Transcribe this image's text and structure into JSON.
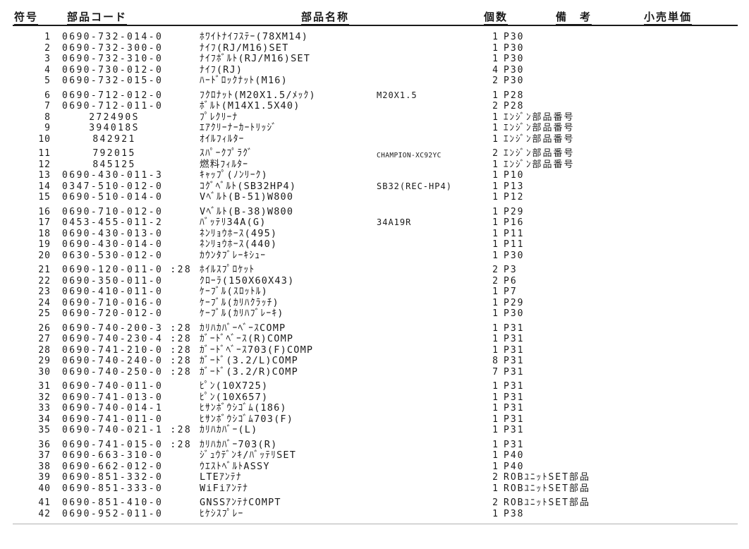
{
  "page": {
    "background": "#ffffff",
    "text_color": "#1a1a1a",
    "rule_color": "#1a1a1a",
    "bottom_rule_color": "#b0b0b0"
  },
  "table": {
    "headers": {
      "num": "符号",
      "code": "部品コード",
      "name": "部品名称",
      "qty": "個数",
      "remarks": "備　考",
      "price": "小売単価"
    },
    "groups": [
      [
        {
          "num": "1",
          "code": "0690-732-014-0",
          "name": "ﾎﾜｲﾄﾅｲﾌｽﾃｰ(78XM14)",
          "spec": "",
          "qty": "1",
          "remarks": "P30"
        },
        {
          "num": "2",
          "code": "0690-732-300-0",
          "name": "ﾅｲﾌ(RJ/M16)SET",
          "spec": "",
          "qty": "1",
          "remarks": "P30"
        },
        {
          "num": "3",
          "code": "0690-732-310-0",
          "name": "ﾅｲﾌﾎﾞﾙﾄ(RJ/M16)SET",
          "spec": "",
          "qty": "1",
          "remarks": "P30"
        },
        {
          "num": "4",
          "code": "0690-730-012-0",
          "name": "ﾅｲﾌ(RJ)",
          "spec": "",
          "qty": "4",
          "remarks": "P30"
        },
        {
          "num": "5",
          "code": "0690-732-015-0",
          "name": "ﾊｰﾄﾞﾛｯｸﾅｯﾄ(M16)",
          "spec": "",
          "qty": "2",
          "remarks": "P30"
        }
      ],
      [
        {
          "num": "6",
          "code": "0690-712-012-0",
          "name": "ﾌｸﾛﾅｯﾄ(M20X1.5/ﾒｯｸ)",
          "spec": "M20X1.5",
          "qty": "1",
          "remarks": "P28"
        },
        {
          "num": "7",
          "code": "0690-712-011-0",
          "name": "ﾎﾞﾙﾄ(M14X1.5X40)",
          "spec": "",
          "qty": "2",
          "remarks": "P28"
        },
        {
          "num": "8",
          "code": "272490S",
          "name": "ﾌﾟﾚｸﾘｰﾅ",
          "spec": "",
          "qty": "1",
          "remarks": "ｴﾝｼﾞﾝ部品番号"
        },
        {
          "num": "9",
          "code": "394018S",
          "name": "ｴｱｸﾘｰﾅｰｶｰﾄﾘｯｼﾞ",
          "spec": "",
          "qty": "1",
          "remarks": "ｴﾝｼﾞﾝ部品番号"
        },
        {
          "num": "10",
          "code": "842921",
          "name": "ｵｲﾙﾌｨﾙﾀｰ",
          "spec": "",
          "qty": "1",
          "remarks": "ｴﾝｼﾞﾝ部品番号"
        }
      ],
      [
        {
          "num": "11",
          "code": "792015",
          "name": "ｽﾊﾟｰｸﾌﾟﾗｸﾞ",
          "spec": "CHAMPION-XC92YC",
          "spec_small": true,
          "qty": "2",
          "remarks": "ｴﾝｼﾞﾝ部品番号"
        },
        {
          "num": "12",
          "code": "845125",
          "name": "燃料ﾌｨﾙﾀｰ",
          "spec": "",
          "qty": "1",
          "remarks": "ｴﾝｼﾞﾝ部品番号"
        },
        {
          "num": "13",
          "code": "0690-430-011-3",
          "name": "ｷｬｯﾌﾟ(ﾉﾝﾘｰｸ)",
          "spec": "",
          "qty": "1",
          "remarks": "P10"
        },
        {
          "num": "14",
          "code": "0347-510-012-0",
          "name": "ｺｸﾞﾍﾞﾙﾄ(SB32HP4)",
          "spec": "SB32(REC-HP4)",
          "qty": "1",
          "remarks": "P13"
        },
        {
          "num": "15",
          "code": "0690-510-014-0",
          "name": "Vﾍﾞﾙﾄ(B-51)W800",
          "spec": "",
          "qty": "1",
          "remarks": "P12"
        }
      ],
      [
        {
          "num": "16",
          "code": "0690-710-012-0",
          "name": "Vﾍﾞﾙﾄ(B-38)W800",
          "spec": "",
          "qty": "1",
          "remarks": "P29"
        },
        {
          "num": "17",
          "code": "0453-455-011-2",
          "name": "ﾊﾞｯﾃﾘ34A(G)",
          "spec": "34A19R",
          "qty": "1",
          "remarks": "P16"
        },
        {
          "num": "18",
          "code": "0690-430-013-0",
          "name": "ﾈﾝﾘｮｳﾎｰｽ(495)",
          "spec": "",
          "qty": "1",
          "remarks": "P11"
        },
        {
          "num": "19",
          "code": "0690-430-014-0",
          "name": "ﾈﾝﾘｮｳﾎｰｽ(440)",
          "spec": "",
          "qty": "1",
          "remarks": "P11"
        },
        {
          "num": "20",
          "code": "0630-530-012-0",
          "name": "ｶｳﾝﾀﾌﾞﾚｰｷｼｭｰ",
          "spec": "",
          "qty": "1",
          "remarks": "P30"
        }
      ],
      [
        {
          "num": "21",
          "code": "0690-120-011-0 :28",
          "name": "ﾎｲﾙｽﾌﾟﾛｹｯﾄ",
          "spec": "",
          "qty": "2",
          "remarks": "P3"
        },
        {
          "num": "22",
          "code": "0690-350-011-0",
          "name": "ｸﾛｰﾗ(150X60X43)",
          "spec": "",
          "qty": "2",
          "remarks": "P6"
        },
        {
          "num": "23",
          "code": "0690-410-011-0",
          "name": "ｹｰﾌﾞﾙ(ｽﾛｯﾄﾙ)",
          "spec": "",
          "qty": "1",
          "remarks": "P7"
        },
        {
          "num": "24",
          "code": "0690-710-016-0",
          "name": "ｹｰﾌﾞﾙ(ｶﾘﾊｸﾗｯﾁ)",
          "spec": "",
          "qty": "1",
          "remarks": "P29"
        },
        {
          "num": "25",
          "code": "0690-720-012-0",
          "name": "ｹｰﾌﾞﾙ(ｶﾘﾊﾌﾞﾚｰｷ)",
          "spec": "",
          "qty": "1",
          "remarks": "P30"
        }
      ],
      [
        {
          "num": "26",
          "code": "0690-740-200-3 :28",
          "name": "ｶﾘﾊｶﾊﾞｰﾍﾞｰｽCOMP",
          "spec": "",
          "qty": "1",
          "remarks": "P31"
        },
        {
          "num": "27",
          "code": "0690-740-230-4 :28",
          "name": "ｶﾞｰﾄﾞﾍﾞｰｽ(R)COMP",
          "spec": "",
          "qty": "1",
          "remarks": "P31"
        },
        {
          "num": "28",
          "code": "0690-741-210-0 :28",
          "name": "ｶﾞｰﾄﾞﾍﾞｰｽ703(F)COMP",
          "spec": "",
          "qty": "1",
          "remarks": "P31"
        },
        {
          "num": "29",
          "code": "0690-740-240-0 :28",
          "name": "ｶﾞｰﾄﾞ(3.2/L)COMP",
          "spec": "",
          "qty": "8",
          "remarks": "P31"
        },
        {
          "num": "30",
          "code": "0690-740-250-0 :28",
          "name": "ｶﾞｰﾄﾞ(3.2/R)COMP",
          "spec": "",
          "qty": "7",
          "remarks": "P31"
        }
      ],
      [
        {
          "num": "31",
          "code": "0690-740-011-0",
          "name": "ﾋﾟﾝ(10X725)",
          "spec": "",
          "qty": "1",
          "remarks": "P31"
        },
        {
          "num": "32",
          "code": "0690-741-013-0",
          "name": "ﾋﾟﾝ(10X657)",
          "spec": "",
          "qty": "1",
          "remarks": "P31"
        },
        {
          "num": "33",
          "code": "0690-740-014-1",
          "name": "ﾋｻﾝﾎﾞｳｼｺﾞﾑ(186)",
          "spec": "",
          "qty": "1",
          "remarks": "P31"
        },
        {
          "num": "34",
          "code": "0690-741-011-0",
          "name": "ﾋｻﾝﾎﾞｳｼｺﾞﾑ703(F)",
          "spec": "",
          "qty": "1",
          "remarks": "P31"
        },
        {
          "num": "35",
          "code": "0690-740-021-1 :28",
          "name": "ｶﾘﾊｶﾊﾞｰ(L)",
          "spec": "",
          "qty": "1",
          "remarks": "P31"
        }
      ],
      [
        {
          "num": "36",
          "code": "0690-741-015-0 :28",
          "name": "ｶﾘﾊｶﾊﾞｰ703(R)",
          "spec": "",
          "qty": "1",
          "remarks": "P31"
        },
        {
          "num": "37",
          "code": "0690-663-310-0",
          "name": "ｼﾞｭｳﾃﾞﾝｷ/ﾊﾞｯﾃﾘSET",
          "spec": "",
          "qty": "1",
          "remarks": "P40"
        },
        {
          "num": "38",
          "code": "0690-662-012-0",
          "name": "ｳｴｽﾄﾍﾞﾙﾄASSY",
          "spec": "",
          "qty": "1",
          "remarks": "P40"
        },
        {
          "num": "39",
          "code": "0690-851-332-0",
          "name": "LTEｱﾝﾃﾅ",
          "spec": "",
          "qty": "2",
          "remarks": "ROBﾕﾆｯﾄSET部品"
        },
        {
          "num": "40",
          "code": "0690-851-333-0",
          "name": "WiFiｱﾝﾃﾅ",
          "spec": "",
          "qty": "1",
          "remarks": "ROBﾕﾆｯﾄSET部品"
        }
      ],
      [
        {
          "num": "41",
          "code": "0690-851-410-0",
          "name": "GNSSｱﾝﾃﾅCOMPT",
          "spec": "",
          "qty": "2",
          "remarks": "ROBﾕﾆｯﾄSET部品"
        },
        {
          "num": "42",
          "code": "0690-952-011-0",
          "name": "ﾋｹｼｽﾌﾟﾚｰ",
          "spec": "",
          "qty": "1",
          "remarks": "P38"
        }
      ]
    ]
  }
}
